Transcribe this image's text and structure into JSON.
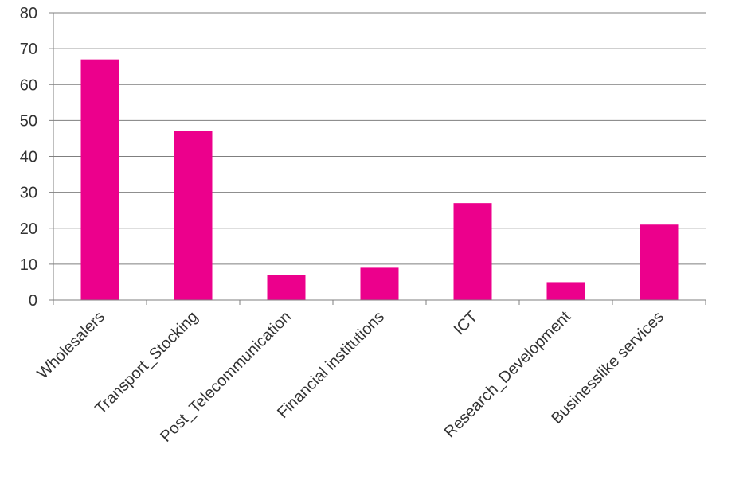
{
  "chart_data": {
    "type": "bar",
    "categories": [
      "Wholesalers",
      "Transport_Stocking",
      "Post_Telecommunication",
      "Financial institutions",
      "ICT",
      "Research_Development",
      "Businesslike services"
    ],
    "values": [
      67,
      47,
      7,
      9,
      27,
      5,
      21
    ],
    "title": "",
    "xlabel": "",
    "ylabel": "",
    "ylim": [
      0,
      80
    ],
    "yticks": [
      0,
      10,
      20,
      30,
      40,
      50,
      60,
      70,
      80
    ],
    "grid": true,
    "legend": "none",
    "bar_color": "#ec008c"
  }
}
